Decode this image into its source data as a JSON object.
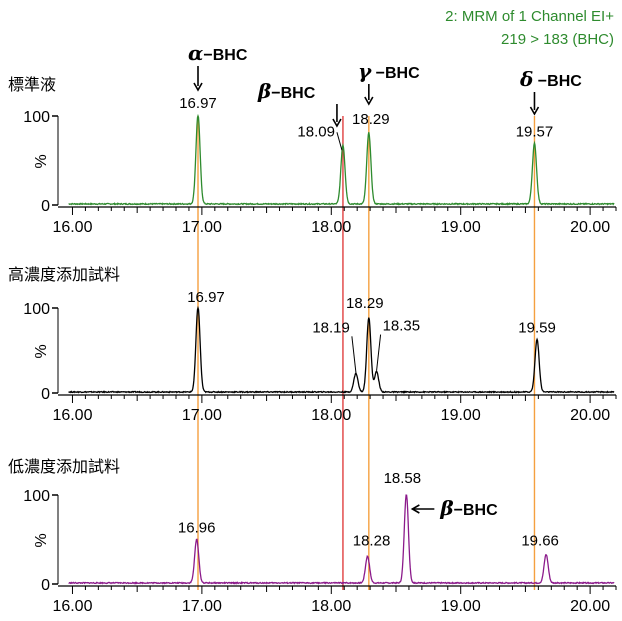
{
  "chart_data": {
    "type": "line",
    "title": "2: MRM of 1 Channel EI+",
    "subtitle": "219 > 183 (BHC)",
    "xlim": [
      15.95,
      20.2
    ],
    "ylim": [
      0,
      100
    ],
    "x_ticks": [
      "16.00",
      "17.00",
      "18.00",
      "19.00",
      "20.00"
    ],
    "y_ticks": [
      "0",
      "100"
    ],
    "ylabel": "%",
    "colors": {
      "standard": "#2e8b2e",
      "high": "#000000",
      "low": "#8b1a8b",
      "marker_orange": "#f5a040",
      "marker_red": "#e04040"
    },
    "vertical_markers": [
      {
        "x": 16.97,
        "color": "marker_orange"
      },
      {
        "x": 18.09,
        "color": "marker_red"
      },
      {
        "x": 18.29,
        "color": "marker_orange"
      },
      {
        "x": 19.57,
        "color": "marker_orange"
      }
    ],
    "compounds": [
      {
        "greek": "α",
        "suffix": "−BHC",
        "rt": 16.97
      },
      {
        "greek": "β",
        "suffix": "−BHC",
        "rt": 18.09
      },
      {
        "greek": "γ",
        "suffix": " −BHC",
        "rt": 18.29
      },
      {
        "greek": "δ",
        "suffix": " −BHC",
        "rt": 19.57
      }
    ],
    "series": [
      {
        "name": "標準液",
        "color": "standard",
        "peaks": [
          {
            "x": 16.97,
            "y": 100,
            "label": "16.97"
          },
          {
            "x": 18.09,
            "y": 66,
            "label": "18.09"
          },
          {
            "x": 18.29,
            "y": 80,
            "label": "18.29"
          },
          {
            "x": 19.57,
            "y": 68,
            "label": "19.57"
          }
        ]
      },
      {
        "name": "高濃度添加試料",
        "color": "high",
        "peaks": [
          {
            "x": 16.97,
            "y": 100,
            "label": "16.97"
          },
          {
            "x": 18.19,
            "y": 22,
            "label": "18.19"
          },
          {
            "x": 18.29,
            "y": 88,
            "label": "18.29"
          },
          {
            "x": 18.35,
            "y": 24,
            "label": "18.35"
          },
          {
            "x": 19.59,
            "y": 62,
            "label": "19.59"
          }
        ]
      },
      {
        "name": "低濃度添加試料",
        "color": "low",
        "peaks": [
          {
            "x": 16.96,
            "y": 49,
            "label": "16.96"
          },
          {
            "x": 18.28,
            "y": 30,
            "label": "18.28"
          },
          {
            "x": 18.58,
            "y": 100,
            "label": "18.58"
          },
          {
            "x": 19.66,
            "y": 32,
            "label": "19.66"
          }
        ]
      }
    ],
    "annotations": [
      {
        "series": 2,
        "x": 18.58,
        "greek": "β",
        "suffix": "−BHC"
      }
    ]
  }
}
